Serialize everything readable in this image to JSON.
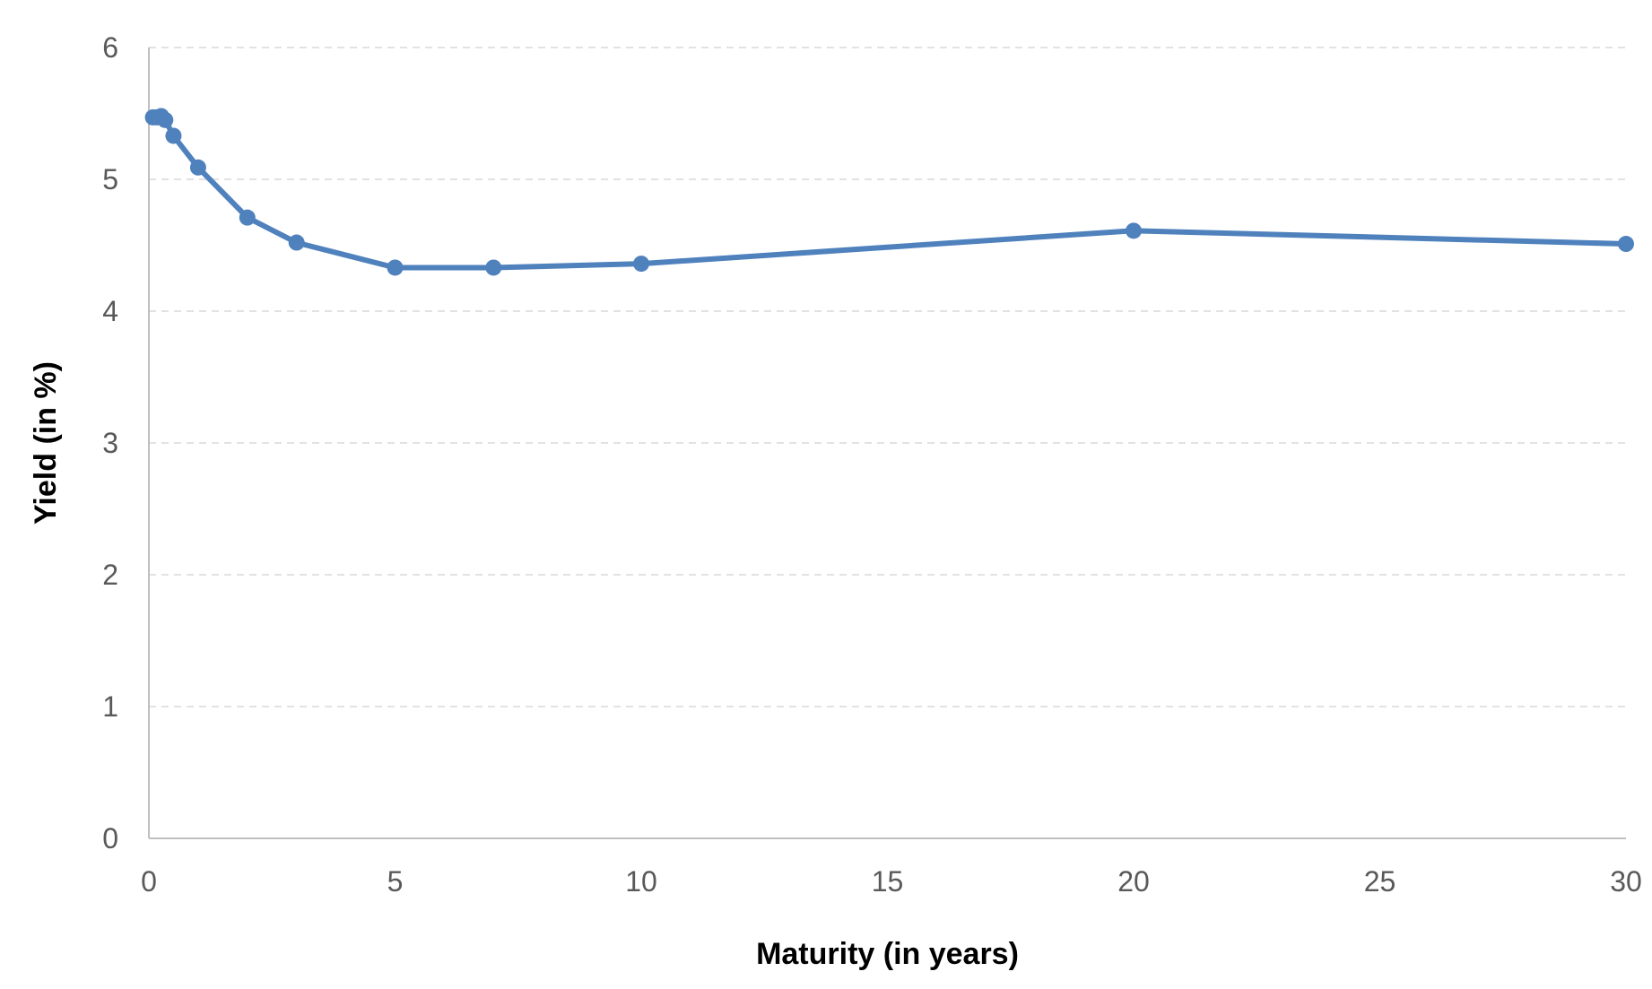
{
  "chart_data": {
    "type": "line",
    "title": "",
    "xlabel": "Maturity (in years)",
    "ylabel": "Yield (in %)",
    "xlim": [
      0,
      30
    ],
    "ylim": [
      0,
      6
    ],
    "x_ticks": [
      "0",
      "5",
      "10",
      "15",
      "20",
      "25",
      "30"
    ],
    "y_ticks": [
      "0",
      "1",
      "2",
      "3",
      "4",
      "5",
      "6"
    ],
    "grid": true,
    "legend": "none",
    "series": [
      {
        "color": "#4f81bd",
        "points": [
          {
            "x": 0.083,
            "y": 5.47
          },
          {
            "x": 0.167,
            "y": 5.47
          },
          {
            "x": 0.25,
            "y": 5.48
          },
          {
            "x": 0.333,
            "y": 5.45
          },
          {
            "x": 0.5,
            "y": 5.33
          },
          {
            "x": 1,
            "y": 5.09
          },
          {
            "x": 2,
            "y": 4.71
          },
          {
            "x": 3,
            "y": 4.52
          },
          {
            "x": 5,
            "y": 4.33
          },
          {
            "x": 7,
            "y": 4.33
          },
          {
            "x": 10,
            "y": 4.36
          },
          {
            "x": 20,
            "y": 4.61
          },
          {
            "x": 30,
            "y": 4.51
          }
        ]
      }
    ]
  }
}
